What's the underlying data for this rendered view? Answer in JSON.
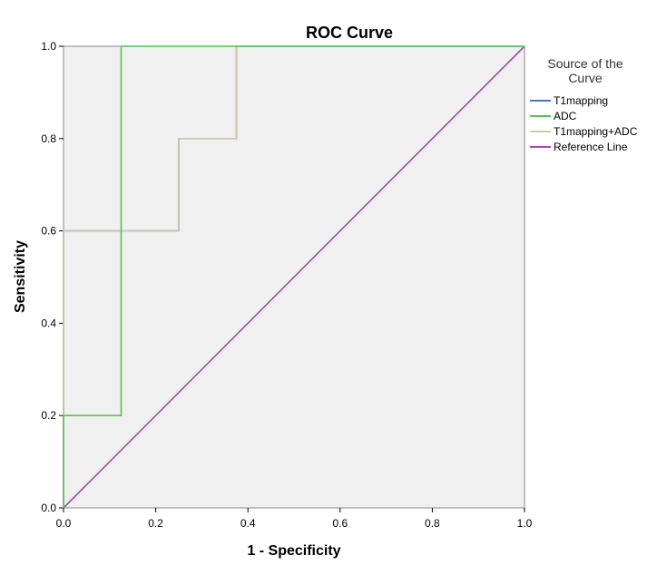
{
  "chart_data": {
    "type": "line",
    "title": "ROC Curve",
    "xlabel": "1 - Specificity",
    "ylabel": "Sensitivity",
    "xlim": [
      0,
      1
    ],
    "ylim": [
      0,
      1
    ],
    "xticks": [
      "0.0",
      "0.2",
      "0.4",
      "0.6",
      "0.8",
      "1.0"
    ],
    "yticks": [
      "0.0",
      "0.2",
      "0.4",
      "0.6",
      "0.8",
      "1.0"
    ],
    "grid": false,
    "legend_position": "right",
    "legend_title": "Source of the Curve",
    "series": [
      {
        "name": "T1mapping",
        "color": "#4a74c4",
        "points": [
          [
            0,
            0
          ],
          [
            0,
            0.6
          ],
          [
            0.25,
            0.6
          ],
          [
            0.25,
            0.8
          ],
          [
            0.375,
            0.8
          ],
          [
            0.375,
            1.0
          ],
          [
            1.0,
            1.0
          ]
        ]
      },
      {
        "name": "ADC",
        "color": "#5cbf5c",
        "points": [
          [
            0,
            0
          ],
          [
            0,
            0.2
          ],
          [
            0.125,
            0.2
          ],
          [
            0.125,
            1.0
          ],
          [
            1.0,
            1.0
          ]
        ]
      },
      {
        "name": "T1mapping+ADC",
        "color": "#cfcca8",
        "points": [
          [
            0,
            0
          ],
          [
            0,
            0.6
          ],
          [
            0.25,
            0.6
          ],
          [
            0.25,
            0.8
          ],
          [
            0.375,
            0.8
          ],
          [
            0.375,
            1.0
          ],
          [
            1.0,
            1.0
          ]
        ]
      },
      {
        "name": "Reference Line",
        "color": "#a24ca8",
        "points": [
          [
            0,
            0
          ],
          [
            1,
            1
          ]
        ]
      }
    ]
  }
}
